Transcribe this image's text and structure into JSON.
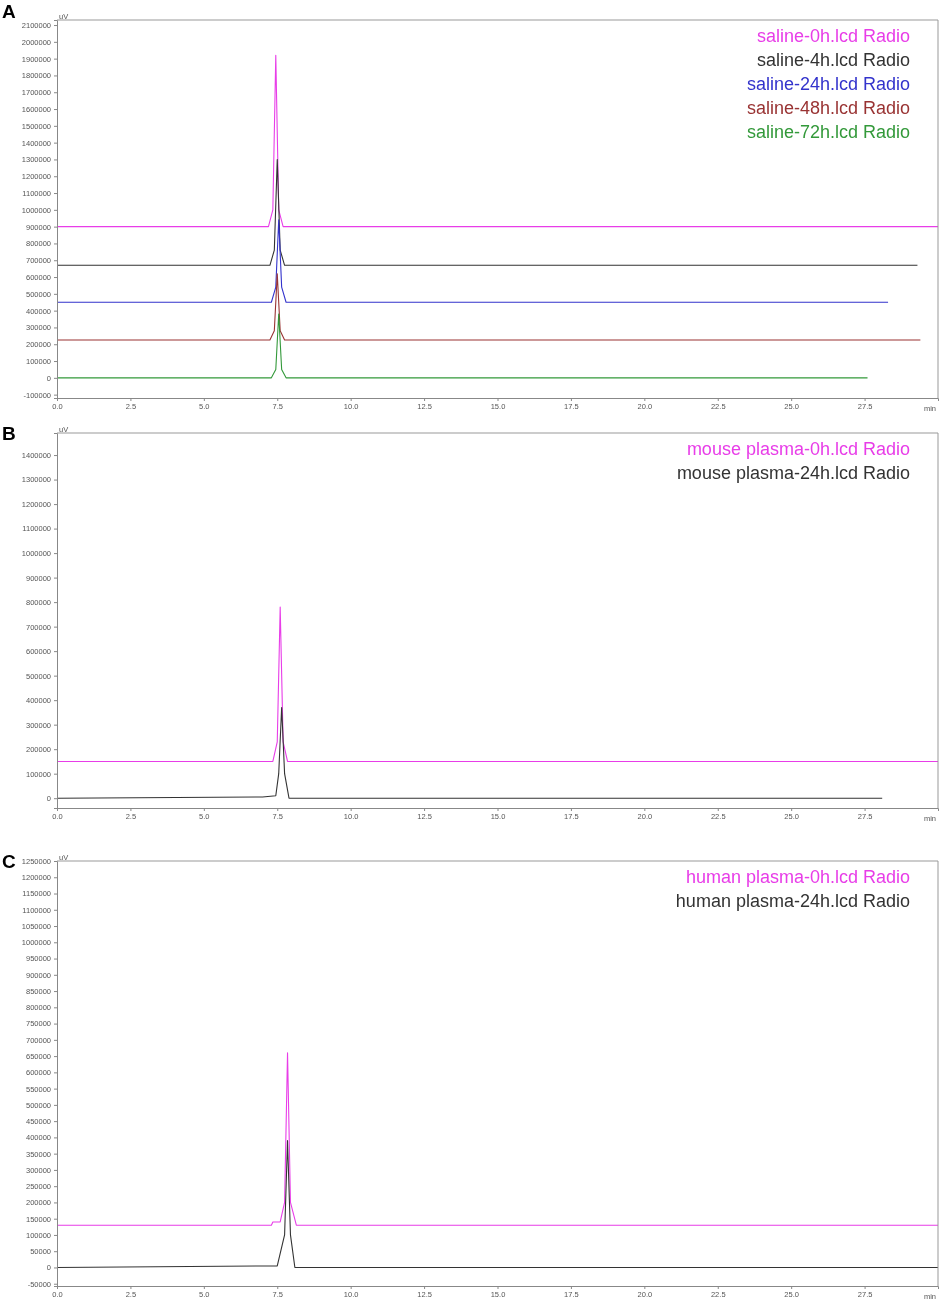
{
  "chart_data": [
    {
      "type": "line",
      "title": "A",
      "xlabel": "min",
      "ylabel": "uV",
      "legend": "top right",
      "marker": "none",
      "line_style": "solid",
      "grid": false,
      "xlim": [
        0,
        30
      ],
      "ylim": [
        -120000,
        2130000
      ],
      "xticks": [
        {
          "value": 0,
          "label": "0.0"
        },
        {
          "value": 2.5,
          "label": "2.5"
        },
        {
          "value": 5,
          "label": "5.0"
        },
        {
          "value": 7.5,
          "label": "7.5"
        },
        {
          "value": 10,
          "label": "10.0"
        },
        {
          "value": 12.5,
          "label": "12.5"
        },
        {
          "value": 15,
          "label": "15.0"
        },
        {
          "value": 17.5,
          "label": "17.5"
        },
        {
          "value": 20,
          "label": "20.0"
        },
        {
          "value": 22.5,
          "label": "22.5"
        },
        {
          "value": 25,
          "label": "25.0"
        },
        {
          "value": 27.5,
          "label": "27.5"
        }
      ],
      "yticks": [
        -100000,
        0,
        100000,
        200000,
        300000,
        400000,
        500000,
        600000,
        700000,
        800000,
        900000,
        1000000,
        1100000,
        1200000,
        1300000,
        1400000,
        1500000,
        1600000,
        1700000,
        1800000,
        1900000,
        2000000,
        2100000
      ],
      "series": [
        {
          "name": "saline-0h.lcd Radio",
          "color": "#e83de8",
          "x": [
            0,
            7.2,
            7.35,
            7.45,
            7.55,
            7.7,
            30
          ],
          "values": [
            900000,
            900000,
            1000000,
            1920000,
            1000000,
            900000,
            900000
          ]
        },
        {
          "name": "saline-4h.lcd Radio",
          "color": "#333333",
          "x": [
            0,
            7.25,
            7.4,
            7.5,
            7.6,
            7.75,
            29.3
          ],
          "values": [
            670000,
            670000,
            760000,
            1300000,
            760000,
            670000,
            670000
          ]
        },
        {
          "name": "saline-24h.lcd Radio",
          "color": "#3333cc",
          "x": [
            0,
            7.3,
            7.45,
            7.55,
            7.65,
            7.8,
            28.3
          ],
          "values": [
            450000,
            450000,
            540000,
            940000,
            540000,
            450000,
            450000
          ]
        },
        {
          "name": "saline-48h.lcd Radio",
          "color": "#993333",
          "x": [
            0,
            7.25,
            7.4,
            7.5,
            7.6,
            7.75,
            29.4
          ],
          "values": [
            225000,
            225000,
            280000,
            620000,
            280000,
            225000,
            225000
          ]
        },
        {
          "name": "saline-72h.lcd Radio",
          "color": "#33993a",
          "x": [
            0,
            7.3,
            7.45,
            7.55,
            7.65,
            7.8,
            27.6
          ],
          "values": [
            0,
            0,
            50000,
            380000,
            50000,
            0,
            0
          ]
        }
      ]
    },
    {
      "type": "line",
      "title": "B",
      "xlabel": "min",
      "ylabel": "uV",
      "legend": "top right",
      "marker": "none",
      "line_style": "solid",
      "grid": false,
      "xlim": [
        0,
        30
      ],
      "ylim": [
        -40000,
        1490000
      ],
      "xticks": [
        {
          "value": 0,
          "label": "0.0"
        },
        {
          "value": 2.5,
          "label": "2.5"
        },
        {
          "value": 5,
          "label": "5.0"
        },
        {
          "value": 7.5,
          "label": "7.5"
        },
        {
          "value": 10,
          "label": "10.0"
        },
        {
          "value": 12.5,
          "label": "12.5"
        },
        {
          "value": 15,
          "label": "15.0"
        },
        {
          "value": 17.5,
          "label": "17.5"
        },
        {
          "value": 20,
          "label": "20.0"
        },
        {
          "value": 22.5,
          "label": "22.5"
        },
        {
          "value": 25,
          "label": "25.0"
        },
        {
          "value": 27.5,
          "label": "27.5"
        }
      ],
      "yticks": [
        0,
        100000,
        200000,
        300000,
        400000,
        500000,
        600000,
        700000,
        800000,
        900000,
        1000000,
        1100000,
        1200000,
        1300000,
        1400000
      ],
      "series": [
        {
          "name": "mouse plasma-0h.lcd Radio",
          "color": "#e83de8",
          "x": [
            0,
            7.35,
            7.5,
            7.6,
            7.7,
            7.85,
            30
          ],
          "values": [
            150000,
            150000,
            230000,
            780000,
            230000,
            150000,
            150000
          ]
        },
        {
          "name": "mouse plasma-24h.lcd Radio",
          "color": "#333333",
          "x": [
            0,
            7.0,
            7.45,
            7.55,
            7.65,
            7.75,
            7.9,
            28.1
          ],
          "values": [
            0,
            5000,
            10000,
            100000,
            370000,
            100000,
            0,
            0
          ]
        }
      ]
    },
    {
      "type": "line",
      "title": "C",
      "xlabel": "min",
      "ylabel": "uV",
      "legend": "top right",
      "marker": "none",
      "line_style": "solid",
      "grid": false,
      "xlim": [
        0,
        30
      ],
      "ylim": [
        -57000,
        1250000
      ],
      "xticks": [
        {
          "value": 0,
          "label": "0.0"
        },
        {
          "value": 2.5,
          "label": "2.5"
        },
        {
          "value": 5,
          "label": "5.0"
        },
        {
          "value": 7.5,
          "label": "7.5"
        },
        {
          "value": 10,
          "label": "10.0"
        },
        {
          "value": 12.5,
          "label": "12.5"
        },
        {
          "value": 15,
          "label": "15.0"
        },
        {
          "value": 17.5,
          "label": "17.5"
        },
        {
          "value": 20,
          "label": "20.0"
        },
        {
          "value": 22.5,
          "label": "22.5"
        },
        {
          "value": 25,
          "label": "25.0"
        },
        {
          "value": 27.5,
          "label": "27.5"
        }
      ],
      "yticks": [
        -50000,
        0,
        50000,
        100000,
        150000,
        200000,
        250000,
        300000,
        350000,
        400000,
        450000,
        500000,
        550000,
        600000,
        650000,
        700000,
        750000,
        800000,
        850000,
        900000,
        950000,
        1000000,
        1050000,
        1100000,
        1150000,
        1200000,
        1250000
      ],
      "series": [
        {
          "name": "human plasma-0h.lcd Radio",
          "color": "#e83de8",
          "x": [
            0,
            7.3,
            7.35,
            7.6,
            7.75,
            7.85,
            7.95,
            8.15,
            30
          ],
          "values": [
            130000,
            130000,
            140000,
            140000,
            200000,
            660000,
            200000,
            130000,
            130000
          ]
        },
        {
          "name": "human plasma-24h.lcd Radio",
          "color": "#333333",
          "x": [
            0,
            7.5,
            7.75,
            7.85,
            7.95,
            8.1,
            30
          ],
          "values": [
            0,
            5000,
            100000,
            390000,
            100000,
            0,
            0
          ]
        }
      ]
    }
  ]
}
